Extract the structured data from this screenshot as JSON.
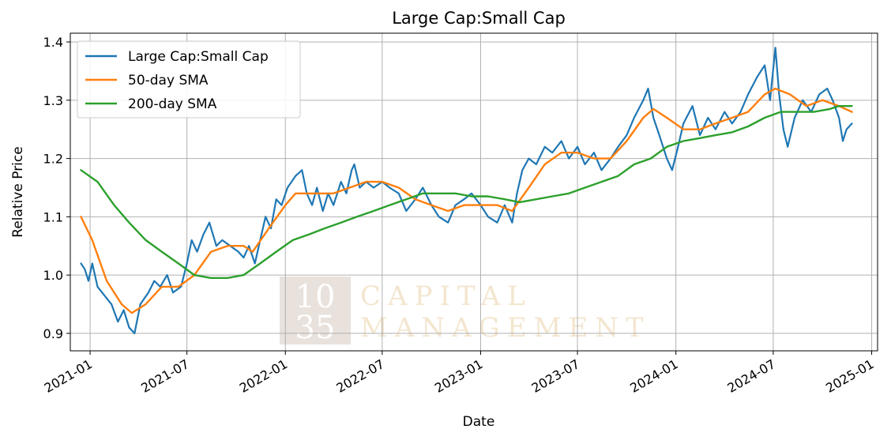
{
  "chart_data": {
    "type": "line",
    "title": "Large Cap:Small Cap",
    "xlabel": "Date",
    "ylabel": "Relative Price",
    "xlim": [
      "2020-11-25",
      "2025-01-12"
    ],
    "ylim": [
      0.87,
      1.415
    ],
    "grid": true,
    "legend_position": "top-left",
    "x_ticks": [
      "2021-01",
      "2021-07",
      "2022-01",
      "2022-07",
      "2023-01",
      "2023-07",
      "2024-01",
      "2024-07",
      "2025-01"
    ],
    "y_ticks": [
      "0.9",
      "1.0",
      "1.1",
      "1.2",
      "1.3",
      "1.4"
    ],
    "series": [
      {
        "name": "Large Cap:Small Cap",
        "color": "#1f77b4",
        "points": [
          [
            "2020-12-15",
            1.02
          ],
          [
            "2020-12-22",
            1.01
          ],
          [
            "2020-12-29",
            0.99
          ],
          [
            "2021-01-05",
            1.02
          ],
          [
            "2021-01-15",
            0.98
          ],
          [
            "2021-02-01",
            0.96
          ],
          [
            "2021-02-10",
            0.95
          ],
          [
            "2021-02-22",
            0.92
          ],
          [
            "2021-03-05",
            0.94
          ],
          [
            "2021-03-15",
            0.91
          ],
          [
            "2021-03-25",
            0.9
          ],
          [
            "2021-04-05",
            0.95
          ],
          [
            "2021-04-20",
            0.97
          ],
          [
            "2021-05-01",
            0.99
          ],
          [
            "2021-05-12",
            0.98
          ],
          [
            "2021-05-25",
            1.0
          ],
          [
            "2021-06-05",
            0.97
          ],
          [
            "2021-06-20",
            0.98
          ],
          [
            "2021-07-01",
            1.02
          ],
          [
            "2021-07-10",
            1.06
          ],
          [
            "2021-07-20",
            1.04
          ],
          [
            "2021-08-01",
            1.07
          ],
          [
            "2021-08-12",
            1.09
          ],
          [
            "2021-08-25",
            1.05
          ],
          [
            "2021-09-05",
            1.06
          ],
          [
            "2021-09-20",
            1.05
          ],
          [
            "2021-10-05",
            1.04
          ],
          [
            "2021-10-15",
            1.03
          ],
          [
            "2021-10-25",
            1.05
          ],
          [
            "2021-11-05",
            1.02
          ],
          [
            "2021-11-15",
            1.06
          ],
          [
            "2021-11-25",
            1.1
          ],
          [
            "2021-12-05",
            1.08
          ],
          [
            "2021-12-15",
            1.13
          ],
          [
            "2021-12-25",
            1.12
          ],
          [
            "2022-01-05",
            1.15
          ],
          [
            "2022-01-20",
            1.17
          ],
          [
            "2022-02-01",
            1.18
          ],
          [
            "2022-02-10",
            1.14
          ],
          [
            "2022-02-20",
            1.12
          ],
          [
            "2022-03-01",
            1.15
          ],
          [
            "2022-03-12",
            1.11
          ],
          [
            "2022-03-22",
            1.14
          ],
          [
            "2022-04-01",
            1.12
          ],
          [
            "2022-04-15",
            1.16
          ],
          [
            "2022-04-25",
            1.14
          ],
          [
            "2022-05-05",
            1.18
          ],
          [
            "2022-05-10",
            1.19
          ],
          [
            "2022-05-20",
            1.15
          ],
          [
            "2022-06-01",
            1.16
          ],
          [
            "2022-06-15",
            1.15
          ],
          [
            "2022-07-01",
            1.16
          ],
          [
            "2022-07-15",
            1.15
          ],
          [
            "2022-08-01",
            1.14
          ],
          [
            "2022-08-15",
            1.11
          ],
          [
            "2022-09-01",
            1.13
          ],
          [
            "2022-09-15",
            1.15
          ],
          [
            "2022-10-01",
            1.12
          ],
          [
            "2022-10-15",
            1.1
          ],
          [
            "2022-11-01",
            1.09
          ],
          [
            "2022-11-15",
            1.12
          ],
          [
            "2022-12-01",
            1.13
          ],
          [
            "2022-12-15",
            1.14
          ],
          [
            "2023-01-01",
            1.12
          ],
          [
            "2023-01-15",
            1.1
          ],
          [
            "2023-02-01",
            1.09
          ],
          [
            "2023-02-15",
            1.12
          ],
          [
            "2023-03-01",
            1.09
          ],
          [
            "2023-03-10",
            1.14
          ],
          [
            "2023-03-20",
            1.18
          ],
          [
            "2023-04-01",
            1.2
          ],
          [
            "2023-04-15",
            1.19
          ],
          [
            "2023-05-01",
            1.22
          ],
          [
            "2023-05-15",
            1.21
          ],
          [
            "2023-06-01",
            1.23
          ],
          [
            "2023-06-15",
            1.2
          ],
          [
            "2023-07-01",
            1.22
          ],
          [
            "2023-07-15",
            1.19
          ],
          [
            "2023-08-01",
            1.21
          ],
          [
            "2023-08-15",
            1.18
          ],
          [
            "2023-09-01",
            1.2
          ],
          [
            "2023-09-15",
            1.22
          ],
          [
            "2023-10-01",
            1.24
          ],
          [
            "2023-10-15",
            1.27
          ],
          [
            "2023-11-01",
            1.3
          ],
          [
            "2023-11-10",
            1.32
          ],
          [
            "2023-11-20",
            1.27
          ],
          [
            "2023-12-01",
            1.24
          ],
          [
            "2023-12-15",
            1.2
          ],
          [
            "2023-12-25",
            1.18
          ],
          [
            "2024-01-05",
            1.22
          ],
          [
            "2024-01-15",
            1.26
          ],
          [
            "2024-02-01",
            1.29
          ],
          [
            "2024-02-15",
            1.24
          ],
          [
            "2024-03-01",
            1.27
          ],
          [
            "2024-03-15",
            1.25
          ],
          [
            "2024-04-01",
            1.28
          ],
          [
            "2024-04-15",
            1.26
          ],
          [
            "2024-05-01",
            1.28
          ],
          [
            "2024-05-15",
            1.31
          ],
          [
            "2024-06-01",
            1.34
          ],
          [
            "2024-06-15",
            1.36
          ],
          [
            "2024-06-25",
            1.3
          ],
          [
            "2024-07-05",
            1.39
          ],
          [
            "2024-07-12",
            1.31
          ],
          [
            "2024-07-20",
            1.25
          ],
          [
            "2024-07-28",
            1.22
          ],
          [
            "2024-08-10",
            1.27
          ],
          [
            "2024-08-25",
            1.3
          ],
          [
            "2024-09-10",
            1.28
          ],
          [
            "2024-09-25",
            1.31
          ],
          [
            "2024-10-10",
            1.32
          ],
          [
            "2024-10-20",
            1.3
          ],
          [
            "2024-11-01",
            1.27
          ],
          [
            "2024-11-08",
            1.23
          ],
          [
            "2024-11-15",
            1.25
          ],
          [
            "2024-11-25",
            1.26
          ]
        ]
      },
      {
        "name": "50-day SMA",
        "color": "#ff7f0e",
        "points": [
          [
            "2020-12-15",
            1.1
          ],
          [
            "2021-01-05",
            1.06
          ],
          [
            "2021-02-01",
            0.99
          ],
          [
            "2021-03-01",
            0.95
          ],
          [
            "2021-03-20",
            0.935
          ],
          [
            "2021-04-15",
            0.95
          ],
          [
            "2021-05-15",
            0.98
          ],
          [
            "2021-06-15",
            0.98
          ],
          [
            "2021-07-15",
            1.0
          ],
          [
            "2021-08-15",
            1.04
          ],
          [
            "2021-09-15",
            1.05
          ],
          [
            "2021-10-15",
            1.05
          ],
          [
            "2021-11-01",
            1.04
          ],
          [
            "2021-12-01",
            1.08
          ],
          [
            "2022-01-01",
            1.12
          ],
          [
            "2022-01-20",
            1.14
          ],
          [
            "2022-03-01",
            1.14
          ],
          [
            "2022-04-01",
            1.14
          ],
          [
            "2022-05-01",
            1.15
          ],
          [
            "2022-06-01",
            1.16
          ],
          [
            "2022-07-01",
            1.16
          ],
          [
            "2022-08-01",
            1.15
          ],
          [
            "2022-09-01",
            1.13
          ],
          [
            "2022-10-01",
            1.12
          ],
          [
            "2022-11-01",
            1.11
          ],
          [
            "2022-12-01",
            1.12
          ],
          [
            "2023-01-01",
            1.12
          ],
          [
            "2023-02-01",
            1.12
          ],
          [
            "2023-03-01",
            1.11
          ],
          [
            "2023-04-01",
            1.15
          ],
          [
            "2023-05-01",
            1.19
          ],
          [
            "2023-06-01",
            1.21
          ],
          [
            "2023-07-01",
            1.21
          ],
          [
            "2023-08-01",
            1.2
          ],
          [
            "2023-09-01",
            1.2
          ],
          [
            "2023-10-01",
            1.23
          ],
          [
            "2023-11-01",
            1.27
          ],
          [
            "2023-11-20",
            1.285
          ],
          [
            "2023-12-15",
            1.27
          ],
          [
            "2024-01-15",
            1.25
          ],
          [
            "2024-02-15",
            1.25
          ],
          [
            "2024-03-15",
            1.26
          ],
          [
            "2024-04-15",
            1.27
          ],
          [
            "2024-05-15",
            1.28
          ],
          [
            "2024-06-15",
            1.31
          ],
          [
            "2024-07-05",
            1.32
          ],
          [
            "2024-08-01",
            1.31
          ],
          [
            "2024-09-01",
            1.29
          ],
          [
            "2024-10-01",
            1.3
          ],
          [
            "2024-11-01",
            1.29
          ],
          [
            "2024-11-25",
            1.28
          ]
        ]
      },
      {
        "name": "200-day SMA",
        "color": "#2ca02c",
        "points": [
          [
            "2020-12-15",
            1.18
          ],
          [
            "2021-01-15",
            1.16
          ],
          [
            "2021-02-15",
            1.12
          ],
          [
            "2021-03-15",
            1.09
          ],
          [
            "2021-04-15",
            1.06
          ],
          [
            "2021-05-15",
            1.04
          ],
          [
            "2021-06-15",
            1.02
          ],
          [
            "2021-07-15",
            1.0
          ],
          [
            "2021-08-15",
            0.995
          ],
          [
            "2021-09-15",
            0.995
          ],
          [
            "2021-10-15",
            1.0
          ],
          [
            "2021-11-15",
            1.02
          ],
          [
            "2021-12-15",
            1.04
          ],
          [
            "2022-01-15",
            1.06
          ],
          [
            "2022-02-15",
            1.07
          ],
          [
            "2022-03-15",
            1.08
          ],
          [
            "2022-04-15",
            1.09
          ],
          [
            "2022-05-15",
            1.1
          ],
          [
            "2022-06-15",
            1.11
          ],
          [
            "2022-07-15",
            1.12
          ],
          [
            "2022-08-15",
            1.13
          ],
          [
            "2022-09-15",
            1.14
          ],
          [
            "2022-10-15",
            1.14
          ],
          [
            "2022-11-15",
            1.14
          ],
          [
            "2022-12-15",
            1.135
          ],
          [
            "2023-01-15",
            1.135
          ],
          [
            "2023-02-15",
            1.13
          ],
          [
            "2023-03-15",
            1.125
          ],
          [
            "2023-04-15",
            1.13
          ],
          [
            "2023-05-15",
            1.135
          ],
          [
            "2023-06-15",
            1.14
          ],
          [
            "2023-07-15",
            1.15
          ],
          [
            "2023-08-15",
            1.16
          ],
          [
            "2023-09-15",
            1.17
          ],
          [
            "2023-10-15",
            1.19
          ],
          [
            "2023-11-15",
            1.2
          ],
          [
            "2023-12-15",
            1.22
          ],
          [
            "2024-01-15",
            1.23
          ],
          [
            "2024-02-15",
            1.235
          ],
          [
            "2024-03-15",
            1.24
          ],
          [
            "2024-04-15",
            1.245
          ],
          [
            "2024-05-15",
            1.255
          ],
          [
            "2024-06-15",
            1.27
          ],
          [
            "2024-07-15",
            1.28
          ],
          [
            "2024-08-15",
            1.28
          ],
          [
            "2024-09-15",
            1.28
          ],
          [
            "2024-10-15",
            1.285
          ],
          [
            "2024-11-01",
            1.29
          ],
          [
            "2024-11-25",
            1.29
          ]
        ]
      }
    ]
  },
  "watermark": {
    "number_top": "10",
    "number_bottom": "35",
    "line1": "CAPITAL",
    "line2": "MANAGEMENT"
  }
}
